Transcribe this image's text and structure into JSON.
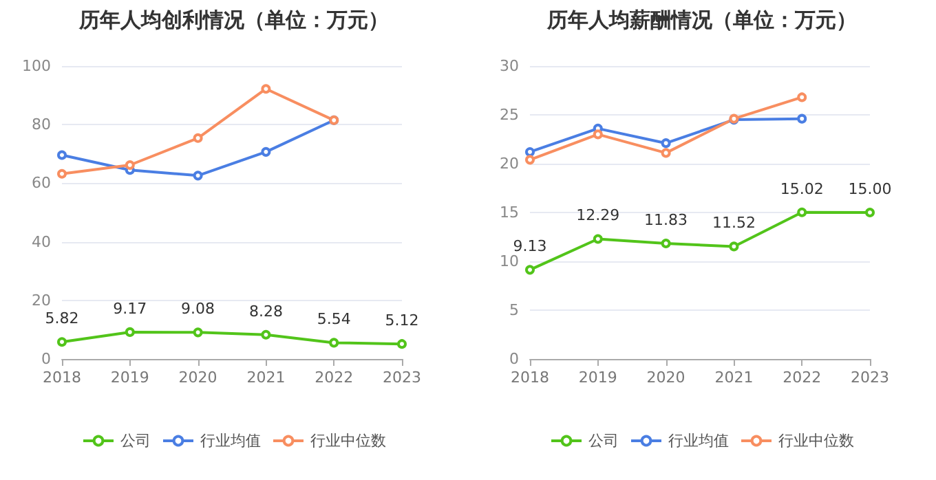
{
  "chart_data": [
    {
      "type": "line",
      "title": "历年人均创利情况（单位：万元）",
      "categories": [
        "2018",
        "2019",
        "2020",
        "2021",
        "2022",
        "2023"
      ],
      "ylim": [
        0,
        100
      ],
      "yticks": [
        0,
        20,
        40,
        60,
        80,
        100
      ],
      "grid": "y",
      "legend": "bottom",
      "marker": "circle",
      "series": [
        {
          "name": "公司",
          "color": "#52c41a",
          "values": [
            5.82,
            9.17,
            9.08,
            8.28,
            5.54,
            5.12
          ],
          "value_labels": [
            "5.82",
            "9.17",
            "9.08",
            "8.28",
            "5.54",
            "5.12"
          ]
        },
        {
          "name": "行业均值",
          "color": "#4a7ee3",
          "values": [
            69.6,
            64.5,
            62.6,
            70.7,
            81.5,
            null
          ]
        },
        {
          "name": "行业中位数",
          "color": "#f88e60",
          "values": [
            63.2,
            66.2,
            75.4,
            92.2,
            81.5,
            null
          ]
        }
      ]
    },
    {
      "type": "line",
      "title": "历年人均薪酬情况（单位：万元）",
      "categories": [
        "2018",
        "2019",
        "2020",
        "2021",
        "2022",
        "2023"
      ],
      "ylim": [
        0,
        30
      ],
      "yticks": [
        0,
        5,
        10,
        15,
        20,
        25,
        30
      ],
      "grid": "y",
      "legend": "bottom",
      "marker": "circle",
      "series": [
        {
          "name": "公司",
          "color": "#52c41a",
          "values": [
            9.13,
            12.29,
            11.83,
            11.52,
            15.02,
            15.0
          ],
          "value_labels": [
            "9.13",
            "12.29",
            "11.83",
            "11.52",
            "15.02",
            "15.00"
          ]
        },
        {
          "name": "行业均值",
          "color": "#4a7ee3",
          "values": [
            21.2,
            23.6,
            22.1,
            24.5,
            24.6,
            null
          ]
        },
        {
          "name": "行业中位数",
          "color": "#f88e60",
          "values": [
            20.4,
            23.0,
            21.1,
            24.6,
            26.8,
            null
          ]
        }
      ]
    }
  ]
}
